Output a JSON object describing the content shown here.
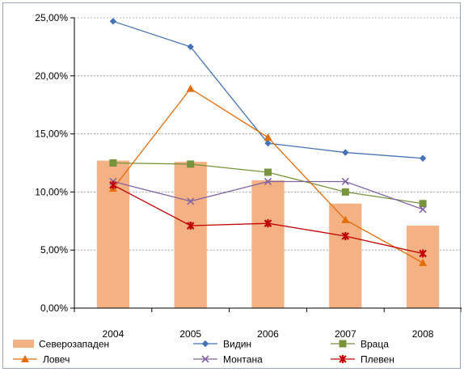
{
  "chart_data": {
    "type": "bar",
    "title": "",
    "xlabel": "",
    "ylabel": "",
    "categories": [
      "2004",
      "2005",
      "2006",
      "2007",
      "2008"
    ],
    "ylim": [
      0,
      25
    ],
    "yticks": [
      "0,00%",
      "5,00%",
      "10,00%",
      "15,00%",
      "20,00%",
      "25,00%"
    ],
    "grid": "horizontal dashed",
    "legend_position": "bottom",
    "series": [
      {
        "name": "Северозападен",
        "kind": "bar",
        "color": "#f4b183",
        "marker": "bar",
        "values": [
          12.7,
          12.6,
          11.0,
          9.0,
          7.1
        ]
      },
      {
        "name": "Видин",
        "kind": "line",
        "color": "#4573b6",
        "marker": "diamond",
        "values": [
          24.7,
          22.5,
          14.2,
          13.4,
          12.9
        ]
      },
      {
        "name": "Враца",
        "kind": "line",
        "color": "#77933c",
        "marker": "square",
        "values": [
          12.5,
          12.4,
          11.7,
          10.0,
          9.0
        ]
      },
      {
        "name": "Ловеч",
        "kind": "line",
        "color": "#e46c0a",
        "marker": "triangle",
        "values": [
          10.3,
          18.9,
          14.7,
          7.6,
          3.9
        ]
      },
      {
        "name": "Монтана",
        "kind": "line",
        "color": "#8064a2",
        "marker": "x",
        "values": [
          10.9,
          9.2,
          10.9,
          10.9,
          8.5
        ]
      },
      {
        "name": "Плевен",
        "kind": "line",
        "color": "#c00000",
        "marker": "star",
        "values": [
          10.6,
          7.1,
          7.3,
          6.2,
          4.7
        ]
      }
    ]
  }
}
